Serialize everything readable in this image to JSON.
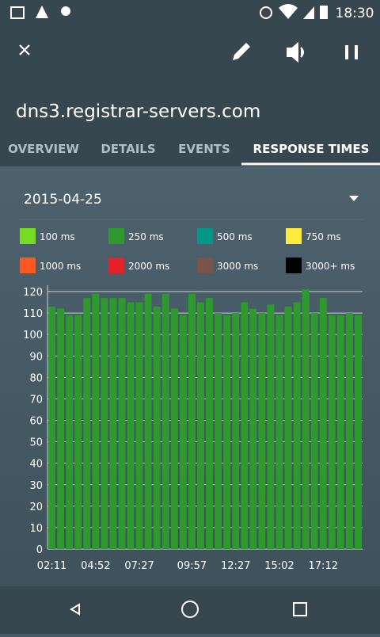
{
  "status_bar": {
    "time": "18:30"
  },
  "header": {
    "title": "dns3.registrar-servers.com"
  },
  "tabs": [
    "OVERVIEW",
    "DETAILS",
    "EVENTS",
    "RESPONSE TIMES"
  ],
  "date": "2015-04-25",
  "chart_data": {
    "type": "bar",
    "legend": [
      {
        "name": "100 ms",
        "color": "#76dd1e"
      },
      {
        "name": "250 ms",
        "color": "#2e9a2e"
      },
      {
        "name": "500 ms",
        "color": "#009688"
      },
      {
        "name": "750 ms",
        "color": "#ffeb3b"
      },
      {
        "name": "1000 ms",
        "color": "#ff5722"
      },
      {
        "name": "2000 ms",
        "color": "#e8202a"
      },
      {
        "name": "3000 ms",
        "color": "#795548"
      },
      {
        "name": "3000+ ms",
        "color": "#000000"
      }
    ],
    "categories": [
      "02:11",
      null,
      null,
      null,
      null,
      "04:52",
      null,
      null,
      null,
      null,
      "07:27",
      null,
      null,
      null,
      null,
      null,
      "09:57",
      null,
      null,
      null,
      null,
      "12:27",
      null,
      null,
      null,
      null,
      "15:02",
      null,
      null,
      null,
      null,
      "17:12",
      null,
      null,
      null,
      null
    ],
    "values": [
      113,
      112,
      109,
      109,
      117,
      119,
      117,
      117,
      117,
      115,
      115,
      119,
      113,
      119,
      112,
      109,
      119,
      115,
      117,
      110,
      109,
      110,
      115,
      112,
      110,
      114,
      109,
      113,
      115,
      121,
      110,
      117,
      109,
      109,
      110,
      109
    ],
    "color": "#2e9a2e",
    "ylim": [
      0,
      120
    ],
    "yticks": [
      0,
      10,
      20,
      30,
      40,
      50,
      60,
      70,
      80,
      90,
      100,
      110,
      120
    ],
    "grid": true
  }
}
